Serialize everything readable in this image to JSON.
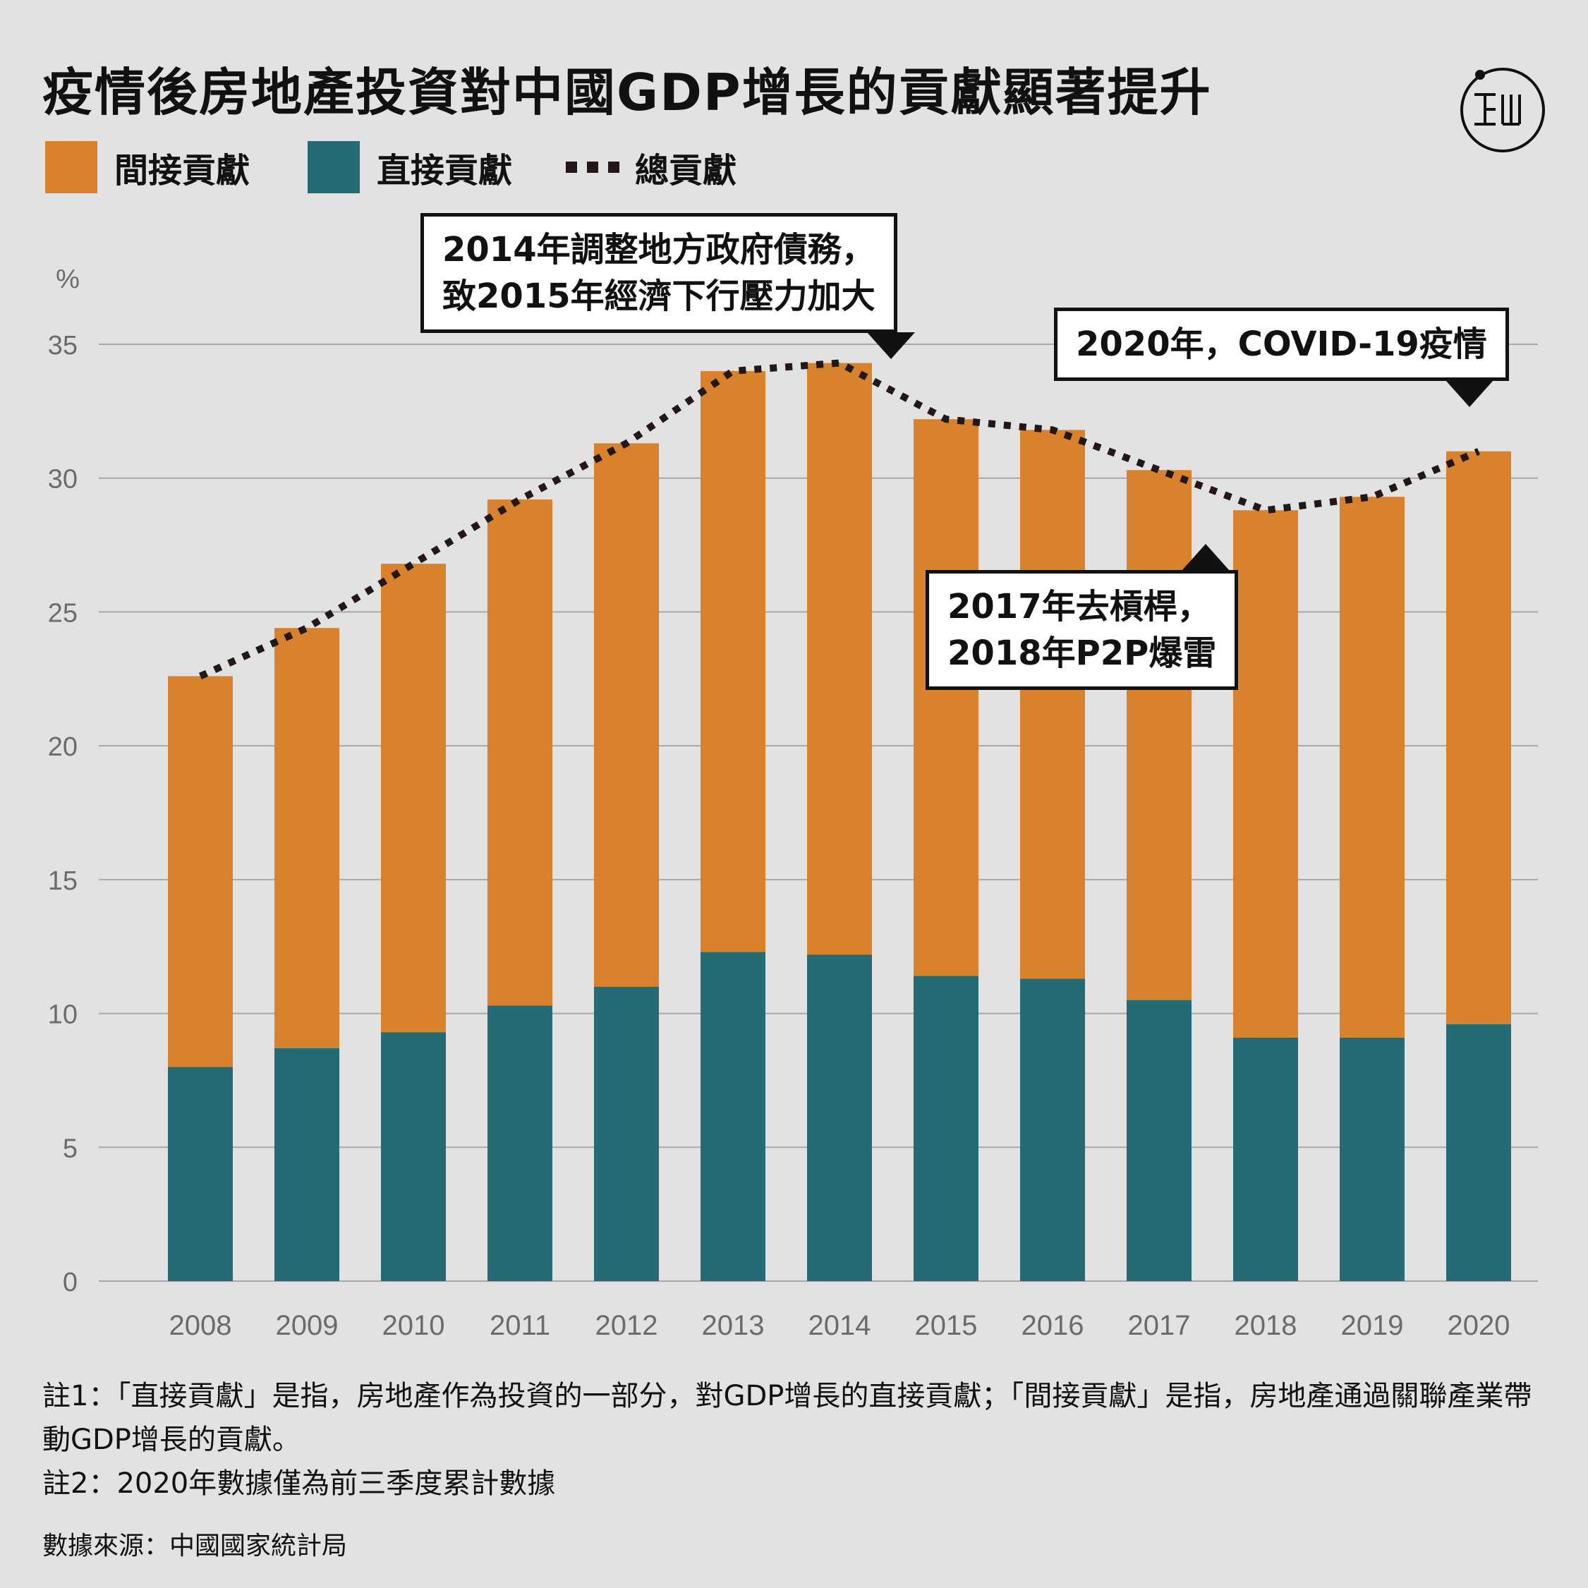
{
  "title": "疫情後房地產投資對中國GDP增長的貢獻顯著提升",
  "logo": {
    "glyph_left": "工",
    "glyph_right": "ш",
    "icon": "initium-media-logo-icon"
  },
  "legend": {
    "indirect": "間接貢獻",
    "direct": "直接貢獻",
    "total": "總貢獻"
  },
  "colors": {
    "indirect": "#d8822c",
    "direct": "#246b75",
    "total": "#231815",
    "grid": "#a8a8a8",
    "axis_text": "#6b6b6b",
    "background": "#e2e2e2"
  },
  "chart_data": {
    "type": "bar",
    "stacked": true,
    "unit_label": "%",
    "ylim": [
      0,
      35
    ],
    "yticks": [
      "0",
      "5",
      "10",
      "15",
      "20",
      "25",
      "30",
      "35"
    ],
    "categories": [
      "2008",
      "2009",
      "2010",
      "2011",
      "2012",
      "2013",
      "2014",
      "2015",
      "2016",
      "2017",
      "2018",
      "2019",
      "2020"
    ],
    "series": [
      {
        "name": "直接貢獻",
        "values": [
          8.0,
          8.7,
          9.3,
          10.3,
          11.0,
          12.3,
          12.2,
          11.4,
          11.3,
          10.5,
          9.1,
          9.1,
          9.6
        ]
      },
      {
        "name": "間接貢獻",
        "values": [
          14.6,
          15.7,
          17.5,
          18.9,
          20.3,
          21.7,
          22.1,
          20.8,
          20.5,
          19.8,
          19.7,
          20.2,
          21.4
        ]
      }
    ],
    "total": {
      "name": "總貢獻",
      "values": [
        22.6,
        24.4,
        26.8,
        29.2,
        31.3,
        34.0,
        34.3,
        32.2,
        31.8,
        30.3,
        28.8,
        29.3,
        31.0
      ]
    },
    "grid": true,
    "legend_position": "top-left"
  },
  "annotations": {
    "a2014": [
      "2014年調整地方政府債務，",
      "致2015年經濟下行壓力加大"
    ],
    "a2020": [
      "2020年，COVID-19疫情"
    ],
    "a2017": [
      "2017年去槓桿，",
      "2018年P2P爆雷"
    ]
  },
  "notes": {
    "note1": "註1：「直接貢獻」是指，房地產作為投資的一部分，對GDP增長的直接貢獻；「間接貢獻」是指，房地產通過關聯產業帶動GDP增長的貢獻。",
    "note2": "註2：2020年數據僅為前三季度累計數據"
  },
  "source": "數據來源：中國國家統計局"
}
